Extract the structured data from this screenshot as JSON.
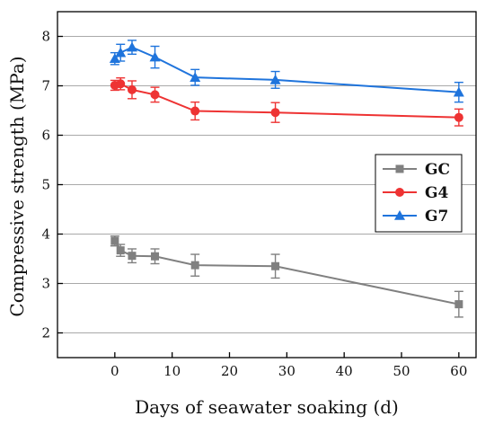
{
  "chart_data": {
    "type": "line",
    "title": "",
    "xlabel": "Days of seawater soaking (d)",
    "ylabel": "Compressive strength (MPa)",
    "xlim": [
      -10,
      63
    ],
    "ylim": [
      1.5,
      8.5
    ],
    "xticks": [
      0,
      10,
      20,
      30,
      40,
      50,
      60
    ],
    "yticks": [
      2,
      3,
      4,
      5,
      6,
      7,
      8
    ],
    "grid": "horizontal",
    "legend_position": "right",
    "series": [
      {
        "name": "GC",
        "color": "#808080",
        "marker": "square",
        "x": [
          0,
          1,
          3,
          7,
          14,
          28,
          60
        ],
        "y": [
          3.86,
          3.67,
          3.56,
          3.55,
          3.37,
          3.35,
          2.58
        ],
        "error": [
          0.1,
          0.12,
          0.14,
          0.15,
          0.22,
          0.24,
          0.26
        ]
      },
      {
        "name": "G4",
        "color": "#ee3333",
        "marker": "circle",
        "x": [
          0,
          1,
          3,
          7,
          14,
          28,
          60
        ],
        "y": [
          7.01,
          7.04,
          6.92,
          6.82,
          6.49,
          6.46,
          6.36
        ],
        "error": [
          0.1,
          0.12,
          0.18,
          0.15,
          0.18,
          0.2,
          0.17
        ]
      },
      {
        "name": "G7",
        "color": "#1f74dc",
        "marker": "triangle",
        "x": [
          0,
          1,
          3,
          7,
          14,
          28,
          60
        ],
        "y": [
          7.55,
          7.67,
          7.78,
          7.58,
          7.17,
          7.12,
          6.87
        ],
        "error": [
          0.12,
          0.17,
          0.14,
          0.22,
          0.16,
          0.17,
          0.2
        ]
      }
    ]
  }
}
